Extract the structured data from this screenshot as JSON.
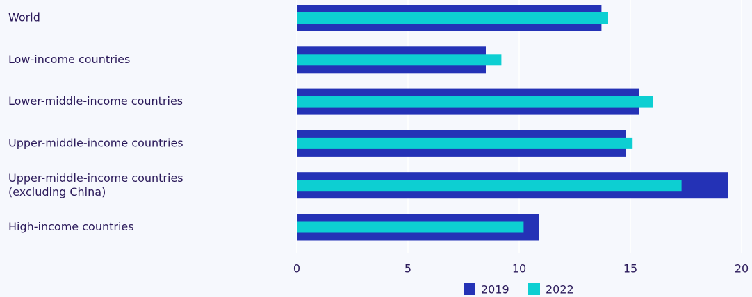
{
  "chart_data": {
    "type": "bar",
    "orientation": "horizontal",
    "categories": [
      "World",
      "Low-income countries",
      "Lower-middle-income countries",
      "Upper-middle-income countries",
      "Upper-middle-income countries\n(excluding China)",
      "High-income countries"
    ],
    "series": [
      {
        "name": "2019",
        "color": "#2432b6",
        "values": [
          13.7,
          8.5,
          15.4,
          14.8,
          19.4,
          10.9
        ]
      },
      {
        "name": "2022",
        "color": "#0dcfd2",
        "values": [
          14.0,
          9.2,
          16.0,
          15.1,
          17.3,
          10.2
        ]
      }
    ],
    "xlim": [
      0,
      20
    ],
    "xticks": [
      0,
      5,
      10,
      15,
      20
    ],
    "grid": true,
    "legend": "bottom"
  }
}
